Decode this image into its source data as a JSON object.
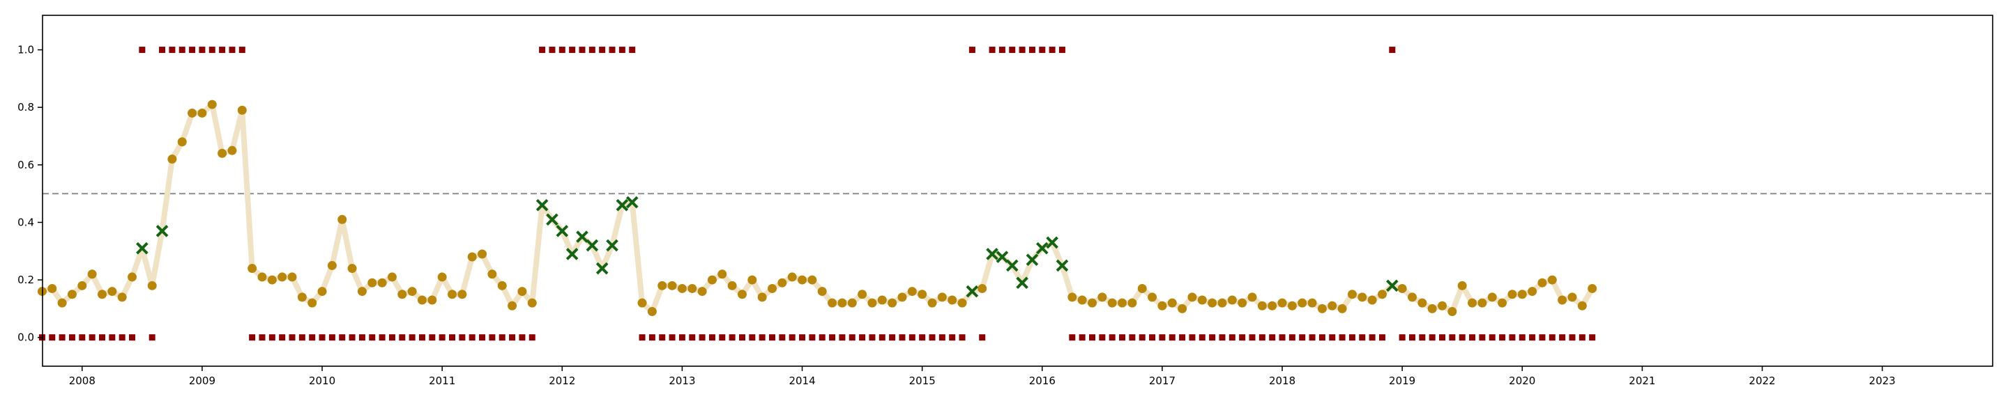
{
  "chart_data": {
    "type": "scatter",
    "title": "",
    "xlabel": "",
    "ylabel": "",
    "xlim": [
      2007.67,
      2023.92
    ],
    "ylim": [
      -0.1,
      1.12
    ],
    "grid": false,
    "legend": "none",
    "x_ticks": [
      "2008",
      "2009",
      "2010",
      "2011",
      "2012",
      "2013",
      "2014",
      "2015",
      "2016",
      "2017",
      "2018",
      "2019",
      "2020",
      "2021",
      "2022",
      "2023"
    ],
    "y_ticks": [
      "0.0",
      "0.2",
      "0.4",
      "0.6",
      "0.8",
      "1.0"
    ],
    "threshold": 0.5,
    "colors": {
      "probability_line": "#f0e2c4",
      "probability_point": "#b8860b",
      "flagged_marker": "#146414",
      "label_marker": "#8b0000",
      "threshold_line": "#999999"
    },
    "start": "2007-09",
    "probability": [
      0.16,
      0.17,
      0.12,
      0.15,
      0.18,
      0.22,
      0.15,
      0.16,
      0.14,
      0.21,
      0.31,
      0.18,
      0.37,
      0.62,
      0.68,
      0.78,
      0.78,
      0.81,
      0.64,
      0.65,
      0.79,
      0.24,
      0.21,
      0.2,
      0.21,
      0.21,
      0.14,
      0.12,
      0.16,
      0.25,
      0.41,
      0.24,
      0.16,
      0.19,
      0.19,
      0.21,
      0.15,
      0.16,
      0.13,
      0.13,
      0.21,
      0.15,
      0.15,
      0.28,
      0.29,
      0.22,
      0.18,
      0.11,
      0.16,
      0.12,
      0.46,
      0.41,
      0.37,
      0.29,
      0.35,
      0.32,
      0.24,
      0.32,
      0.46,
      0.47,
      0.12,
      0.09,
      0.18,
      0.18,
      0.17,
      0.17,
      0.16,
      0.2,
      0.22,
      0.18,
      0.15,
      0.2,
      0.14,
      0.17,
      0.19,
      0.21,
      0.2,
      0.2,
      0.16,
      0.12,
      0.12,
      0.12,
      0.15,
      0.12,
      0.13,
      0.12,
      0.14,
      0.16,
      0.15,
      0.12,
      0.14,
      0.13,
      0.12,
      0.16,
      0.17,
      0.29,
      0.28,
      0.25,
      0.19,
      0.27,
      0.31,
      0.33,
      0.25,
      0.14,
      0.13,
      0.12,
      0.14,
      0.12,
      0.12,
      0.12,
      0.17,
      0.14,
      0.11,
      0.12,
      0.1,
      0.14,
      0.13,
      0.12,
      0.12,
      0.13,
      0.12,
      0.14,
      0.11,
      0.11,
      0.12,
      0.11,
      0.12,
      0.12,
      0.1,
      0.11,
      0.1,
      0.15,
      0.14,
      0.13,
      0.15,
      0.18,
      0.17,
      0.14,
      0.12,
      0.1,
      0.11,
      0.09,
      0.18,
      0.12,
      0.12,
      0.14,
      0.12,
      0.15,
      0.15,
      0.16,
      0.19,
      0.2,
      0.13,
      0.14,
      0.11,
      0.17
    ],
    "labels": [
      0,
      0,
      0,
      0,
      0,
      0,
      0,
      0,
      0,
      0,
      1,
      0,
      1,
      1,
      1,
      1,
      1,
      1,
      1,
      1,
      1,
      0,
      0,
      0,
      0,
      0,
      0,
      0,
      0,
      0,
      0,
      0,
      0,
      0,
      0,
      0,
      0,
      0,
      0,
      0,
      0,
      0,
      0,
      0,
      0,
      0,
      0,
      0,
      0,
      0,
      1,
      1,
      1,
      1,
      1,
      1,
      1,
      1,
      1,
      1,
      0,
      0,
      0,
      0,
      0,
      0,
      0,
      0,
      0,
      0,
      0,
      0,
      0,
      0,
      0,
      0,
      0,
      0,
      0,
      0,
      0,
      0,
      0,
      0,
      0,
      0,
      0,
      0,
      0,
      0,
      0,
      0,
      0,
      1,
      0,
      1,
      1,
      1,
      1,
      1,
      1,
      1,
      1,
      0,
      0,
      0,
      0,
      0,
      0,
      0,
      0,
      0,
      0,
      0,
      0,
      0,
      0,
      0,
      0,
      0,
      0,
      0,
      0,
      0,
      0,
      0,
      0,
      0,
      0,
      0,
      0,
      0,
      0,
      0,
      0,
      1,
      0,
      0,
      0,
      0,
      0,
      0,
      0,
      0,
      0,
      0,
      0,
      0,
      0,
      0,
      0,
      0,
      0,
      0,
      0,
      0
    ]
  }
}
